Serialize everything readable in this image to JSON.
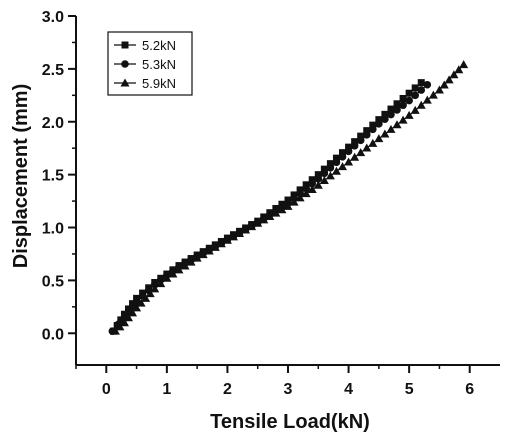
{
  "chart_data": {
    "type": "scatter",
    "xlabel": "Tensile Load(kN)",
    "ylabel": "Displacement (mm)",
    "xlim": [
      -0.5,
      6.5
    ],
    "ylim": [
      -0.3,
      3.0
    ],
    "x_ticks": [
      0,
      1,
      2,
      3,
      4,
      5,
      6
    ],
    "y_ticks": [
      0.0,
      0.5,
      1.0,
      1.5,
      2.0,
      2.5,
      3.0
    ],
    "x_tick_labels": [
      "0",
      "1",
      "2",
      "3",
      "4",
      "5",
      "6"
    ],
    "y_tick_labels": [
      "0.0",
      "0.5",
      "1.0",
      "1.5",
      "2.0",
      "2.5",
      "3.0"
    ],
    "legend_position": "top-left",
    "grid": false,
    "series": [
      {
        "name": "5.2kN",
        "marker": "square",
        "points": [
          [
            0.12,
            0.02
          ],
          [
            0.3,
            0.18
          ],
          [
            0.5,
            0.33
          ],
          [
            0.8,
            0.48
          ],
          [
            1.0,
            0.56
          ],
          [
            1.2,
            0.64
          ],
          [
            1.5,
            0.74
          ],
          [
            2.0,
            0.9
          ],
          [
            2.5,
            1.06
          ],
          [
            3.0,
            1.26
          ],
          [
            3.5,
            1.5
          ],
          [
            4.0,
            1.76
          ],
          [
            4.5,
            2.02
          ],
          [
            4.9,
            2.22
          ],
          [
            5.2,
            2.37
          ]
        ]
      },
      {
        "name": "5.3kN",
        "marker": "circle",
        "points": [
          [
            0.1,
            0.02
          ],
          [
            0.3,
            0.15
          ],
          [
            0.5,
            0.3
          ],
          [
            0.8,
            0.46
          ],
          [
            1.0,
            0.55
          ],
          [
            1.2,
            0.63
          ],
          [
            1.5,
            0.73
          ],
          [
            2.0,
            0.89
          ],
          [
            2.5,
            1.05
          ],
          [
            3.0,
            1.23
          ],
          [
            3.5,
            1.46
          ],
          [
            4.0,
            1.72
          ],
          [
            4.5,
            1.98
          ],
          [
            5.0,
            2.2
          ],
          [
            5.3,
            2.35
          ]
        ]
      },
      {
        "name": "5.9kN",
        "marker": "triangle",
        "points": [
          [
            0.15,
            0.02
          ],
          [
            0.3,
            0.1
          ],
          [
            0.5,
            0.24
          ],
          [
            0.8,
            0.42
          ],
          [
            1.0,
            0.52
          ],
          [
            1.2,
            0.6
          ],
          [
            1.5,
            0.71
          ],
          [
            2.0,
            0.88
          ],
          [
            2.5,
            1.04
          ],
          [
            3.0,
            1.2
          ],
          [
            3.5,
            1.4
          ],
          [
            4.0,
            1.62
          ],
          [
            4.5,
            1.84
          ],
          [
            5.0,
            2.06
          ],
          [
            5.5,
            2.3
          ],
          [
            5.9,
            2.54
          ]
        ]
      }
    ]
  }
}
